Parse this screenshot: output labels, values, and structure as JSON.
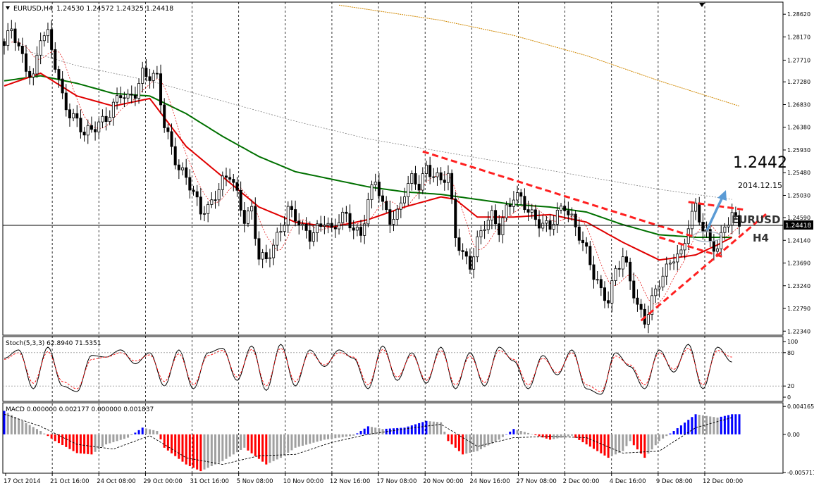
{
  "window": {
    "symbol_label": "EURUSD,H4",
    "ohlc_text": "1.24530 1.24572 1.24325 1.24418"
  },
  "colors": {
    "background": "#ffffff",
    "candles": "#000000",
    "ma_red": "#e00000",
    "ma_green": "#007000",
    "ma_gray": "#808080",
    "ma_orange": "#d08800",
    "trend_red": "#ff2020",
    "arrow_blue": "#5b9bd5",
    "hist_red": "#ff0000",
    "hist_blue": "#0000ff",
    "hist_gray": "#a0a0a0",
    "grid": "#000000"
  },
  "annotations": {
    "target_price": "1.2442",
    "date": "2014.12.15",
    "symbol": "EURUSD",
    "timeframe": "H4",
    "current_price_tag": "1.24418"
  },
  "chart_data": [
    {
      "type": "candlestick",
      "title": "EURUSD,H4",
      "ylim": [
        1.2226,
        1.2886
      ],
      "yticks": [
        "1.28620",
        "1.28170",
        "1.27710",
        "1.27280",
        "1.26830",
        "1.26380",
        "1.25930",
        "1.25480",
        "1.25030",
        "1.24590",
        "1.24140",
        "1.23690",
        "1.23240",
        "1.22790",
        "1.22340"
      ],
      "xticks": [
        "17 Oct 2014",
        "21 Oct 16:00",
        "24 Oct 08:00",
        "29 Oct 00:00",
        "31 Oct 16:00",
        "5 Nov 08:00",
        "10 Nov 00:00",
        "12 Nov 16:00",
        "17 Nov 08:00",
        "20 Nov 00:00",
        "24 Nov 16:00",
        "27 Nov 08:00",
        "2 Dec 00:00",
        "4 Dec 16:00",
        "9 Dec 08:00",
        "12 Dec 00:00"
      ],
      "last_close": 1.24418,
      "close_path": [
        [
          0,
          1.28
        ],
        [
          2,
          1.283
        ],
        [
          4,
          1.279
        ],
        [
          6,
          1.276
        ],
        [
          8,
          1.274
        ],
        [
          10,
          1.282
        ],
        [
          12,
          1.2815
        ],
        [
          14,
          1.276
        ],
        [
          16,
          1.27
        ],
        [
          18,
          1.267
        ],
        [
          20,
          1.265
        ],
        [
          22,
          1.262
        ],
        [
          24,
          1.263
        ],
        [
          26,
          1.265
        ],
        [
          28,
          1.266
        ],
        [
          30,
          1.268
        ],
        [
          32,
          1.27
        ],
        [
          34,
          1.269
        ],
        [
          36,
          1.271
        ],
        [
          38,
          1.275
        ],
        [
          40,
          1.274
        ],
        [
          42,
          1.273
        ],
        [
          44,
          1.264
        ],
        [
          46,
          1.26
        ],
        [
          48,
          1.256
        ],
        [
          50,
          1.254
        ],
        [
          52,
          1.25
        ],
        [
          54,
          1.247
        ],
        [
          56,
          1.248
        ],
        [
          58,
          1.251
        ],
        [
          60,
          1.253
        ],
        [
          62,
          1.254
        ],
        [
          64,
          1.25
        ],
        [
          66,
          1.246
        ],
        [
          68,
          1.248
        ],
        [
          70,
          1.238
        ],
        [
          72,
          1.237
        ],
        [
          74,
          1.24
        ],
        [
          76,
          1.244
        ],
        [
          78,
          1.248
        ],
        [
          80,
          1.246
        ],
        [
          82,
          1.243
        ],
        [
          84,
          1.242
        ],
        [
          86,
          1.244
        ],
        [
          88,
          1.246
        ],
        [
          90,
          1.243
        ],
        [
          92,
          1.245
        ],
        [
          94,
          1.246
        ],
        [
          96,
          1.244
        ],
        [
          98,
          1.243
        ],
        [
          100,
          1.249
        ],
        [
          102,
          1.253
        ],
        [
          104,
          1.248
        ],
        [
          106,
          1.246
        ],
        [
          108,
          1.247
        ],
        [
          110,
          1.251
        ],
        [
          112,
          1.253
        ],
        [
          114,
          1.252
        ],
        [
          116,
          1.256
        ],
        [
          118,
          1.255
        ],
        [
          120,
          1.253
        ],
        [
          122,
          1.254
        ],
        [
          124,
          1.242
        ],
        [
          126,
          1.239
        ],
        [
          128,
          1.237
        ],
        [
          130,
          1.241
        ],
        [
          132,
          1.244
        ],
        [
          134,
          1.246
        ],
        [
          136,
          1.244
        ],
        [
          138,
          1.248
        ],
        [
          140,
          1.25
        ],
        [
          142,
          1.249
        ],
        [
          144,
          1.247
        ],
        [
          146,
          1.246
        ],
        [
          148,
          1.245
        ],
        [
          150,
          1.244
        ],
        [
          152,
          1.246
        ],
        [
          154,
          1.248
        ],
        [
          156,
          1.246
        ],
        [
          158,
          1.243
        ],
        [
          160,
          1.239
        ],
        [
          162,
          1.234
        ],
        [
          164,
          1.231
        ],
        [
          166,
          1.23
        ],
        [
          168,
          1.236
        ],
        [
          170,
          1.238
        ],
        [
          172,
          1.233
        ],
        [
          174,
          1.228
        ],
        [
          176,
          1.226
        ],
        [
          178,
          1.23
        ],
        [
          180,
          1.233
        ],
        [
          182,
          1.235
        ],
        [
          184,
          1.238
        ],
        [
          186,
          1.239
        ],
        [
          188,
          1.245
        ],
        [
          190,
          1.248
        ],
        [
          192,
          1.243
        ],
        [
          194,
          1.241
        ],
        [
          196,
          1.24
        ],
        [
          198,
          1.245
        ],
        [
          200,
          1.246
        ],
        [
          202,
          1.2442
        ]
      ],
      "ma_fast": [
        [
          0,
          1.272
        ],
        [
          10,
          1.2745
        ],
        [
          20,
          1.27
        ],
        [
          30,
          1.268
        ],
        [
          40,
          1.2695
        ],
        [
          50,
          1.26
        ],
        [
          60,
          1.254
        ],
        [
          70,
          1.248
        ],
        [
          80,
          1.245
        ],
        [
          90,
          1.244
        ],
        [
          100,
          1.2455
        ],
        [
          110,
          1.248
        ],
        [
          120,
          1.25
        ],
        [
          124,
          1.2495
        ],
        [
          130,
          1.246
        ],
        [
          140,
          1.246
        ],
        [
          150,
          1.2465
        ],
        [
          160,
          1.245
        ],
        [
          170,
          1.241
        ],
        [
          180,
          1.2375
        ],
        [
          190,
          1.2385
        ],
        [
          196,
          1.2405
        ],
        [
          200,
          1.242
        ]
      ],
      "ma_slow": [
        [
          0,
          1.273
        ],
        [
          10,
          1.274
        ],
        [
          20,
          1.2725
        ],
        [
          30,
          1.2705
        ],
        [
          40,
          1.27
        ],
        [
          50,
          1.2665
        ],
        [
          60,
          1.262
        ],
        [
          70,
          1.258
        ],
        [
          80,
          1.255
        ],
        [
          90,
          1.2535
        ],
        [
          100,
          1.252
        ],
        [
          110,
          1.251
        ],
        [
          120,
          1.2505
        ],
        [
          130,
          1.2495
        ],
        [
          140,
          1.2485
        ],
        [
          150,
          1.248
        ],
        [
          160,
          1.247
        ],
        [
          170,
          1.2445
        ],
        [
          180,
          1.2425
        ],
        [
          190,
          1.242
        ],
        [
          200,
          1.242
        ]
      ],
      "ma_gray": [
        [
          6,
          1.279
        ],
        [
          20,
          1.276
        ],
        [
          40,
          1.273
        ],
        [
          60,
          1.269
        ],
        [
          80,
          1.265
        ],
        [
          100,
          1.2615
        ],
        [
          120,
          1.259
        ],
        [
          140,
          1.2565
        ],
        [
          160,
          1.254
        ],
        [
          180,
          1.2515
        ],
        [
          200,
          1.2495
        ]
      ],
      "ma_long": [
        [
          92,
          1.288
        ],
        [
          120,
          1.285
        ],
        [
          140,
          1.282
        ],
        [
          160,
          1.278
        ],
        [
          180,
          1.273
        ],
        [
          202,
          1.268
        ]
      ],
      "trend_lines": [
        {
          "from": [
            115,
            1.259
          ],
          "to": [
            190,
            1.242
          ]
        },
        {
          "from": [
            175,
            1.2255
          ],
          "to": [
            210,
            1.247
          ]
        },
        {
          "from": [
            188,
            1.249
          ],
          "to": [
            203,
            1.2475
          ]
        },
        {
          "from": [
            180,
            1.242
          ],
          "to": [
            198,
            1.238
          ]
        }
      ]
    },
    {
      "type": "line",
      "title": "Stoch(5,3,3) 62.8940 71.5351",
      "ylim": [
        0,
        100
      ],
      "yticks": [
        "100",
        "80",
        "20",
        "0"
      ],
      "main": [
        [
          0,
          70
        ],
        [
          4,
          85
        ],
        [
          8,
          15
        ],
        [
          12,
          90
        ],
        [
          16,
          20
        ],
        [
          20,
          10
        ],
        [
          24,
          75
        ],
        [
          28,
          72
        ],
        [
          32,
          85
        ],
        [
          36,
          60
        ],
        [
          40,
          80
        ],
        [
          44,
          20
        ],
        [
          48,
          85
        ],
        [
          52,
          15
        ],
        [
          56,
          80
        ],
        [
          60,
          88
        ],
        [
          64,
          30
        ],
        [
          68,
          92
        ],
        [
          72,
          12
        ],
        [
          76,
          95
        ],
        [
          80,
          20
        ],
        [
          84,
          85
        ],
        [
          88,
          55
        ],
        [
          92,
          85
        ],
        [
          96,
          70
        ],
        [
          100,
          15
        ],
        [
          104,
          92
        ],
        [
          108,
          30
        ],
        [
          112,
          80
        ],
        [
          116,
          25
        ],
        [
          120,
          90
        ],
        [
          124,
          15
        ],
        [
          128,
          80
        ],
        [
          132,
          20
        ],
        [
          136,
          90
        ],
        [
          140,
          65
        ],
        [
          144,
          15
        ],
        [
          148,
          75
        ],
        [
          152,
          40
        ],
        [
          156,
          85
        ],
        [
          160,
          15
        ],
        [
          164,
          5
        ],
        [
          168,
          80
        ],
        [
          172,
          55
        ],
        [
          176,
          15
        ],
        [
          180,
          85
        ],
        [
          184,
          45
        ],
        [
          188,
          95
        ],
        [
          192,
          15
        ],
        [
          196,
          90
        ],
        [
          200,
          63
        ]
      ],
      "signal": [
        [
          0,
          68
        ],
        [
          4,
          80
        ],
        [
          8,
          25
        ],
        [
          12,
          82
        ],
        [
          16,
          28
        ],
        [
          20,
          15
        ],
        [
          24,
          68
        ],
        [
          28,
          72
        ],
        [
          32,
          80
        ],
        [
          36,
          65
        ],
        [
          40,
          76
        ],
        [
          44,
          28
        ],
        [
          48,
          78
        ],
        [
          52,
          22
        ],
        [
          56,
          75
        ],
        [
          60,
          84
        ],
        [
          64,
          36
        ],
        [
          68,
          86
        ],
        [
          72,
          20
        ],
        [
          76,
          88
        ],
        [
          80,
          28
        ],
        [
          84,
          80
        ],
        [
          88,
          58
        ],
        [
          92,
          80
        ],
        [
          96,
          72
        ],
        [
          100,
          22
        ],
        [
          104,
          86
        ],
        [
          108,
          36
        ],
        [
          112,
          76
        ],
        [
          116,
          30
        ],
        [
          120,
          84
        ],
        [
          124,
          22
        ],
        [
          128,
          74
        ],
        [
          132,
          26
        ],
        [
          136,
          84
        ],
        [
          140,
          68
        ],
        [
          144,
          22
        ],
        [
          148,
          70
        ],
        [
          152,
          44
        ],
        [
          156,
          80
        ],
        [
          160,
          22
        ],
        [
          164,
          10
        ],
        [
          168,
          74
        ],
        [
          172,
          58
        ],
        [
          176,
          22
        ],
        [
          180,
          80
        ],
        [
          184,
          50
        ],
        [
          188,
          88
        ],
        [
          192,
          22
        ],
        [
          196,
          84
        ],
        [
          200,
          72
        ]
      ]
    },
    {
      "type": "bar",
      "title": "MACD 0.000000 0.002177 0.000000 0.001837",
      "ylim": [
        -0.0057,
        0.0045
      ],
      "yticks": [
        "0.004165",
        "0.00",
        "-0.005711"
      ],
      "histogram_profile": [
        [
          0,
          0.0035
        ],
        [
          10,
          0.0005
        ],
        [
          14,
          -0.001
        ],
        [
          20,
          -0.0028
        ],
        [
          24,
          -0.003
        ],
        [
          28,
          -0.0015
        ],
        [
          34,
          -0.0005
        ],
        [
          38,
          0.001
        ],
        [
          42,
          0.0005
        ],
        [
          44,
          -0.002
        ],
        [
          50,
          -0.0045
        ],
        [
          54,
          -0.0055
        ],
        [
          60,
          -0.004
        ],
        [
          66,
          -0.002
        ],
        [
          72,
          -0.0045
        ],
        [
          76,
          -0.0035
        ],
        [
          80,
          -0.002
        ],
        [
          88,
          -0.0008
        ],
        [
          96,
          -0.0002
        ],
        [
          100,
          0.0012
        ],
        [
          104,
          0.0008
        ],
        [
          110,
          0.001
        ],
        [
          116,
          0.002
        ],
        [
          120,
          0.0018
        ],
        [
          122,
          -0.001
        ],
        [
          126,
          -0.003
        ],
        [
          130,
          -0.0025
        ],
        [
          136,
          -0.0008
        ],
        [
          140,
          0.0008
        ],
        [
          144,
          0.0002
        ],
        [
          150,
          -0.0008
        ],
        [
          156,
          -0.0002
        ],
        [
          160,
          -0.0015
        ],
        [
          166,
          -0.0035
        ],
        [
          170,
          -0.0025
        ],
        [
          172,
          -0.001
        ],
        [
          176,
          -0.0035
        ],
        [
          180,
          -0.001
        ],
        [
          184,
          0.0005
        ],
        [
          190,
          0.003
        ],
        [
          196,
          0.0025
        ],
        [
          200,
          0.003
        ]
      ],
      "signal_line": [
        [
          0,
          0.003
        ],
        [
          10,
          0.0012
        ],
        [
          20,
          -0.0015
        ],
        [
          30,
          -0.0022
        ],
        [
          40,
          -0.0002
        ],
        [
          50,
          -0.0035
        ],
        [
          60,
          -0.0045
        ],
        [
          70,
          -0.0032
        ],
        [
          80,
          -0.003
        ],
        [
          90,
          -0.0012
        ],
        [
          100,
          0.0
        ],
        [
          110,
          0.0008
        ],
        [
          120,
          0.0015
        ],
        [
          130,
          -0.0018
        ],
        [
          140,
          -0.0005
        ],
        [
          150,
          -0.0003
        ],
        [
          160,
          -0.0005
        ],
        [
          170,
          -0.0028
        ],
        [
          180,
          -0.0025
        ],
        [
          190,
          0.001
        ],
        [
          200,
          0.0025
        ]
      ]
    }
  ]
}
